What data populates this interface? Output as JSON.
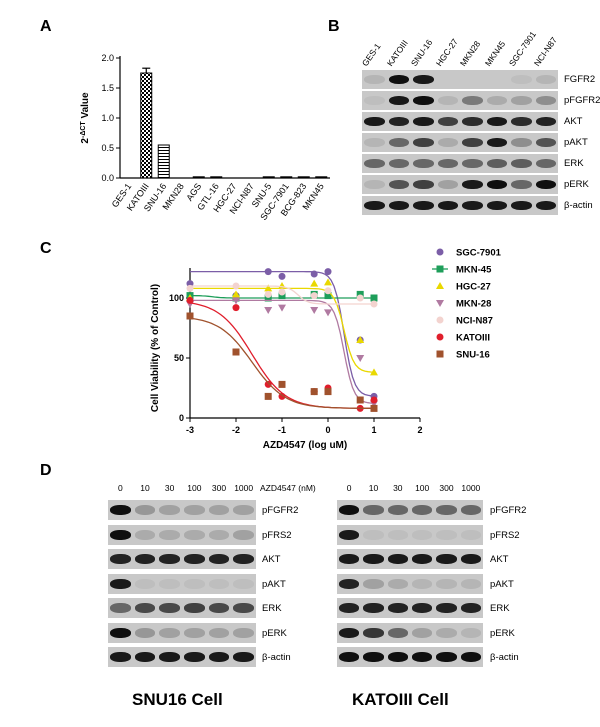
{
  "panel_a": {
    "letter": "A",
    "chart_data": {
      "type": "bar",
      "ylabel": "2^-ΔCT Value",
      "ylabel_main": "2",
      "ylabel_sup": "-ΔCT",
      "ylabel_rest": " Value",
      "ylim": [
        0,
        2.0
      ],
      "yticks": [
        "0.0",
        "0.5",
        "1.0",
        "1.5",
        "2.0"
      ],
      "categories": [
        "GES-1",
        "KATOIII",
        "SNU-16",
        "MKN28",
        "AGS",
        "GTL-16",
        "HGC-27",
        "NCI-N87",
        "SNU-5",
        "SGC-7901",
        "BCG-823",
        "MKN45"
      ],
      "values": [
        0,
        1.75,
        0.55,
        0,
        0.01,
        0.01,
        0,
        0,
        0.01,
        0.01,
        0.02,
        0.01
      ],
      "errors": [
        0,
        0.08,
        0,
        0,
        0,
        0,
        0,
        0,
        0,
        0,
        0,
        0
      ]
    }
  },
  "panel_b": {
    "letter": "B",
    "lanes": [
      "GES-1",
      "KATOIII",
      "SNU-16",
      "HGC-27",
      "MKN28",
      "MKN45",
      "SGC-7901",
      "NCI-N87"
    ],
    "rows": [
      "FGFR2",
      "pFGFR2",
      "AKT",
      "pAKT",
      "ERK",
      "pERK",
      "β-actin"
    ]
  },
  "panel_c": {
    "letter": "C",
    "chart_data": {
      "type": "scatter",
      "xlabel": "AZD4547 (log uM)",
      "ylabel": "Cell Viability (% of Control)",
      "xlim": [
        -3,
        2
      ],
      "ylim": [
        0,
        125
      ],
      "xticks": [
        "-3",
        "-2",
        "-1",
        "0",
        "1",
        "2"
      ],
      "yticks": [
        "0",
        "50",
        "100"
      ],
      "x": [
        -3,
        -2,
        -1.3,
        -1,
        -0.3,
        0,
        0.7,
        1
      ],
      "series": [
        {
          "name": "SGC-7901",
          "color": "#7b5ea7",
          "marker": "circle",
          "values": [
            112,
            102,
            122,
            118,
            120,
            122,
            65,
            18
          ]
        },
        {
          "name": "MKN-45",
          "color": "#1e9e5a",
          "marker": "square",
          "values": [
            102,
            100,
            100,
            102,
            103,
            102,
            103,
            100
          ]
        },
        {
          "name": "HGC-27",
          "color": "#e9d800",
          "marker": "triangle-up",
          "values": [
            100,
            103,
            108,
            110,
            112,
            113,
            65,
            38
          ]
        },
        {
          "name": "MKN-28",
          "color": "#b07aa1",
          "marker": "triangle-down",
          "values": [
            95,
            98,
            90,
            92,
            90,
            88,
            50,
            12
          ]
        },
        {
          "name": "NCI-N87",
          "color": "#f3d3cf",
          "marker": "circle",
          "values": [
            108,
            110,
            103,
            105,
            102,
            106,
            100,
            95
          ]
        },
        {
          "name": "KATOIII",
          "color": "#e01e2c",
          "marker": "circle",
          "values": [
            98,
            92,
            28,
            18,
            22,
            25,
            8,
            15
          ]
        },
        {
          "name": "SNU-16",
          "color": "#a0522d",
          "marker": "square",
          "values": [
            85,
            55,
            18,
            28,
            22,
            22,
            15,
            8
          ]
        }
      ]
    }
  },
  "panel_d": {
    "letter": "D",
    "doses": [
      "0",
      "10",
      "30",
      "100",
      "300",
      "1000"
    ],
    "dose_unit_label": "AZD4547 (nM)",
    "left_rows": [
      "pFGFR2",
      "pFRS2",
      "AKT",
      "pAKT",
      "ERK",
      "pERK",
      "β-actin"
    ],
    "right_rows": [
      "pFGFR2",
      "pFRS2",
      "AKT",
      "pAKT",
      "ERK",
      "pERK",
      "β-actin"
    ],
    "left_caption": "SNU16 Cell",
    "right_caption": "KATOIII Cell"
  }
}
